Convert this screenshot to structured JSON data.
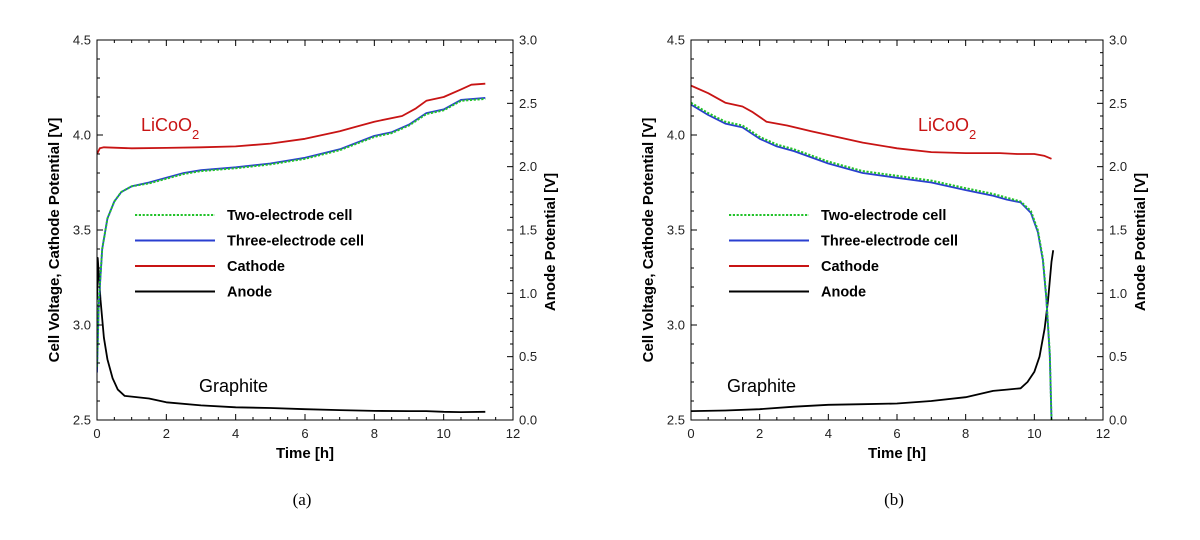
{
  "colors": {
    "two_electrode": "#22c22a",
    "three_electrode": "#2a3fd0",
    "cathode": "#c81414",
    "anode": "#000000"
  },
  "chart_data": [
    {
      "type": "line",
      "caption": "(a)",
      "xlabel": "Time [h]",
      "ylabel": "Cell Voltage, Cathode Potential [V]",
      "y2label": "Anode Potential [V]",
      "xlim": [
        0,
        12
      ],
      "ylim": [
        2.5,
        4.5
      ],
      "y2lim": [
        0.0,
        3.0
      ],
      "xticks": [
        "0",
        "2",
        "4",
        "6",
        "8",
        "10",
        "12"
      ],
      "yticks": [
        "2.5",
        "3.0",
        "3.5",
        "4.0",
        "4.5"
      ],
      "y2ticks": [
        "0.0",
        "0.5",
        "1.0",
        "1.5",
        "2.0",
        "2.5",
        "3.0"
      ],
      "annotations": [
        {
          "text": "LiCoO",
          "sub": "2",
          "color": "#c81414"
        },
        {
          "text": "Graphite",
          "sub": "",
          "color": "#000000"
        }
      ],
      "legend": [
        "Two-electrode cell",
        "Three-electrode cell",
        "Cathode",
        "Anode"
      ],
      "series": [
        {
          "name": "Two-electrode cell",
          "axis": "left",
          "style": "dotted",
          "x": [
            0.0,
            0.05,
            0.15,
            0.3,
            0.5,
            0.7,
            0.9,
            1.0,
            1.5,
            2.0,
            2.5,
            3.0,
            4.0,
            5.0,
            6.0,
            7.0,
            8.0,
            8.5,
            9.0,
            9.5,
            10.0,
            10.5,
            11.2
          ],
          "y": [
            2.78,
            3.12,
            3.4,
            3.56,
            3.65,
            3.7,
            3.72,
            3.73,
            3.745,
            3.77,
            3.795,
            3.81,
            3.825,
            3.845,
            3.875,
            3.92,
            3.99,
            4.01,
            4.05,
            4.11,
            4.13,
            4.18,
            4.19
          ]
        },
        {
          "name": "Three-electrode cell",
          "axis": "left",
          "style": "solid",
          "x": [
            0.0,
            0.05,
            0.15,
            0.3,
            0.5,
            0.7,
            0.9,
            1.0,
            1.5,
            2.0,
            2.5,
            3.0,
            4.0,
            5.0,
            6.0,
            7.0,
            8.0,
            8.5,
            9.0,
            9.5,
            10.0,
            10.5,
            11.2
          ],
          "y": [
            2.75,
            3.1,
            3.4,
            3.56,
            3.65,
            3.7,
            3.72,
            3.73,
            3.75,
            3.775,
            3.8,
            3.815,
            3.83,
            3.85,
            3.88,
            3.925,
            3.995,
            4.015,
            4.055,
            4.115,
            4.135,
            4.185,
            4.195
          ]
        },
        {
          "name": "Cathode",
          "axis": "left",
          "style": "solid",
          "x": [
            0.0,
            0.08,
            0.2,
            1.0,
            2.0,
            3.0,
            4.0,
            5.0,
            6.0,
            7.0,
            8.0,
            8.8,
            9.2,
            9.5,
            10.0,
            10.5,
            10.8,
            11.2
          ],
          "y": [
            3.9,
            3.93,
            3.935,
            3.93,
            3.932,
            3.935,
            3.94,
            3.955,
            3.98,
            4.02,
            4.07,
            4.1,
            4.14,
            4.18,
            4.2,
            4.24,
            4.265,
            4.27
          ]
        },
        {
          "name": "Anode",
          "axis": "right",
          "style": "solid",
          "x": [
            0.0,
            0.02,
            0.1,
            0.2,
            0.3,
            0.45,
            0.6,
            0.8,
            1.0,
            1.5,
            2.0,
            3.0,
            4.0,
            5.0,
            6.0,
            7.0,
            8.0,
            9.0,
            9.5,
            10.0,
            10.5,
            11.2
          ],
          "y": [
            0.95,
            1.28,
            0.95,
            0.65,
            0.48,
            0.33,
            0.24,
            0.19,
            0.185,
            0.17,
            0.14,
            0.115,
            0.1,
            0.095,
            0.085,
            0.078,
            0.072,
            0.07,
            0.07,
            0.065,
            0.062,
            0.065
          ]
        }
      ]
    },
    {
      "type": "line",
      "caption": "(b)",
      "xlabel": "Time [h]",
      "ylabel": "Cell Voltage, Cathode Potential [V]",
      "y2label": "Anode Potential [V]",
      "xlim": [
        0,
        12
      ],
      "ylim": [
        2.5,
        4.5
      ],
      "y2lim": [
        0.0,
        3.0
      ],
      "xticks": [
        "0",
        "2",
        "4",
        "6",
        "8",
        "10",
        "12"
      ],
      "yticks": [
        "2.5",
        "3.0",
        "3.5",
        "4.0",
        "4.5"
      ],
      "y2ticks": [
        "0.0",
        "0.5",
        "1.0",
        "1.5",
        "2.0",
        "2.5",
        "3.0"
      ],
      "annotations": [
        {
          "text": "LiCoO",
          "sub": "2",
          "color": "#c81414"
        },
        {
          "text": "Graphite",
          "sub": "",
          "color": "#000000"
        }
      ],
      "legend": [
        "Two-electrode cell",
        "Three-electrode cell",
        "Cathode",
        "Anode"
      ],
      "series": [
        {
          "name": "Two-electrode cell",
          "axis": "left",
          "style": "dotted",
          "x": [
            0.0,
            0.5,
            1.0,
            1.5,
            2.0,
            2.5,
            3.0,
            4.0,
            5.0,
            6.0,
            7.0,
            8.0,
            8.8,
            9.2,
            9.6,
            9.9,
            10.1,
            10.25,
            10.35,
            10.45,
            10.5
          ],
          "y": [
            4.17,
            4.115,
            4.07,
            4.05,
            3.99,
            3.95,
            3.925,
            3.86,
            3.81,
            3.785,
            3.76,
            3.72,
            3.69,
            3.67,
            3.65,
            3.6,
            3.5,
            3.35,
            3.15,
            2.85,
            2.5
          ]
        },
        {
          "name": "Three-electrode cell",
          "axis": "left",
          "style": "solid",
          "x": [
            0.0,
            0.5,
            1.0,
            1.5,
            2.0,
            2.5,
            3.0,
            4.0,
            5.0,
            6.0,
            7.0,
            8.0,
            8.8,
            9.2,
            9.6,
            9.9,
            10.1,
            10.25,
            10.35,
            10.45,
            10.5
          ],
          "y": [
            4.16,
            4.105,
            4.06,
            4.04,
            3.98,
            3.94,
            3.915,
            3.85,
            3.8,
            3.775,
            3.75,
            3.71,
            3.68,
            3.66,
            3.645,
            3.59,
            3.49,
            3.34,
            3.14,
            2.84,
            2.5
          ]
        },
        {
          "name": "Cathode",
          "axis": "left",
          "style": "solid",
          "x": [
            0.0,
            0.5,
            1.0,
            1.5,
            1.8,
            2.2,
            2.8,
            3.5,
            4.0,
            5.0,
            6.0,
            7.0,
            8.0,
            9.0,
            9.5,
            10.0,
            10.3,
            10.5
          ],
          "y": [
            4.26,
            4.22,
            4.17,
            4.15,
            4.12,
            4.07,
            4.05,
            4.02,
            4.0,
            3.96,
            3.93,
            3.91,
            3.905,
            3.905,
            3.9,
            3.9,
            3.89,
            3.875
          ]
        },
        {
          "name": "Anode",
          "axis": "right",
          "style": "solid",
          "x": [
            0.0,
            1.0,
            2.0,
            3.0,
            4.0,
            5.0,
            6.0,
            7.0,
            8.0,
            8.8,
            9.2,
            9.6,
            9.8,
            10.0,
            10.15,
            10.3,
            10.4,
            10.45,
            10.5,
            10.55
          ],
          "y": [
            0.07,
            0.075,
            0.085,
            0.105,
            0.12,
            0.125,
            0.13,
            0.15,
            0.18,
            0.23,
            0.24,
            0.25,
            0.3,
            0.38,
            0.5,
            0.72,
            0.95,
            1.1,
            1.25,
            1.34
          ]
        }
      ]
    }
  ]
}
